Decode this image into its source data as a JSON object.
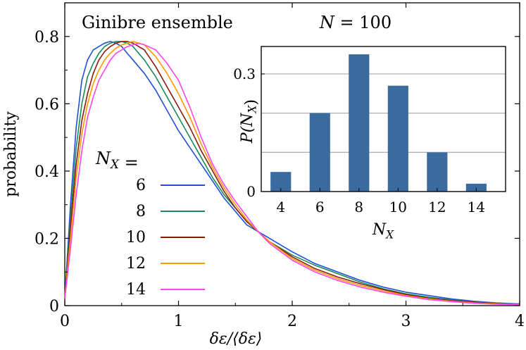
{
  "chart_data": [
    {
      "type": "line",
      "title": "Ginibre ensemble",
      "xlabel": "δε/⟨δε⟩",
      "ylabel": "probability",
      "xlim": [
        0,
        4
      ],
      "ylim": [
        0,
        0.9
      ],
      "xticks": [
        "0",
        "1",
        "2",
        "3",
        "4"
      ],
      "yticks": [
        "0",
        "0.2",
        "0.4",
        "0.6",
        "0.8"
      ],
      "legend_title": "N_X =",
      "legend_placement": "left-middle",
      "x": [
        0,
        0.05,
        0.1,
        0.15,
        0.2,
        0.25,
        0.3,
        0.35,
        0.4,
        0.45,
        0.5,
        0.55,
        0.6,
        0.65,
        0.7,
        0.8,
        0.9,
        1.0,
        1.1,
        1.2,
        1.3,
        1.4,
        1.5,
        1.6,
        1.7,
        1.8,
        2.0,
        2.2,
        2.4,
        2.6,
        2.8,
        3.0,
        3.2,
        3.4,
        3.6,
        3.8,
        4.0
      ],
      "series": [
        {
          "name": "6",
          "color": "#1f4fd6",
          "values": [
            0.02,
            0.3,
            0.53,
            0.67,
            0.73,
            0.76,
            0.77,
            0.78,
            0.785,
            0.78,
            0.77,
            0.75,
            0.73,
            0.71,
            0.69,
            0.64,
            0.58,
            0.52,
            0.47,
            0.42,
            0.37,
            0.32,
            0.28,
            0.24,
            0.22,
            0.2,
            0.16,
            0.125,
            0.1,
            0.075,
            0.055,
            0.04,
            0.03,
            0.02,
            0.013,
            0.008,
            0.005
          ]
        },
        {
          "name": "8",
          "color": "#1a8a5a",
          "values": [
            0.02,
            0.26,
            0.47,
            0.6,
            0.68,
            0.72,
            0.75,
            0.77,
            0.78,
            0.785,
            0.785,
            0.78,
            0.77,
            0.75,
            0.73,
            0.68,
            0.62,
            0.56,
            0.5,
            0.44,
            0.38,
            0.33,
            0.29,
            0.25,
            0.22,
            0.19,
            0.15,
            0.12,
            0.095,
            0.07,
            0.05,
            0.035,
            0.025,
            0.017,
            0.011,
            0.007,
            0.004
          ]
        },
        {
          "name": "10",
          "color": "#8b1a0a",
          "values": [
            0.02,
            0.23,
            0.42,
            0.55,
            0.63,
            0.69,
            0.73,
            0.755,
            0.77,
            0.78,
            0.785,
            0.785,
            0.78,
            0.77,
            0.76,
            0.71,
            0.65,
            0.59,
            0.53,
            0.46,
            0.4,
            0.34,
            0.29,
            0.25,
            0.22,
            0.19,
            0.145,
            0.11,
            0.085,
            0.065,
            0.048,
            0.033,
            0.022,
            0.015,
            0.01,
            0.006,
            0.003
          ]
        },
        {
          "name": "12",
          "color": "#ff9900",
          "values": [
            0.02,
            0.2,
            0.38,
            0.51,
            0.6,
            0.66,
            0.7,
            0.73,
            0.75,
            0.765,
            0.775,
            0.78,
            0.785,
            0.78,
            0.775,
            0.74,
            0.69,
            0.63,
            0.56,
            0.48,
            0.41,
            0.35,
            0.3,
            0.255,
            0.22,
            0.19,
            0.14,
            0.105,
            0.08,
            0.06,
            0.044,
            0.03,
            0.02,
            0.013,
            0.008,
            0.005,
            0.003
          ]
        },
        {
          "name": "14",
          "color": "#ff44ee",
          "values": [
            0.02,
            0.17,
            0.33,
            0.46,
            0.56,
            0.62,
            0.67,
            0.7,
            0.73,
            0.75,
            0.76,
            0.77,
            0.775,
            0.78,
            0.775,
            0.76,
            0.72,
            0.67,
            0.59,
            0.5,
            0.42,
            0.36,
            0.31,
            0.265,
            0.22,
            0.185,
            0.135,
            0.1,
            0.075,
            0.055,
            0.04,
            0.028,
            0.018,
            0.012,
            0.007,
            0.004,
            0.002
          ]
        }
      ]
    },
    {
      "type": "bar",
      "title": "N = 100",
      "xlabel": "N_X",
      "ylabel": "P(N_X)",
      "categories": [
        "4",
        "6",
        "8",
        "10",
        "12",
        "14"
      ],
      "values": [
        0.05,
        0.2,
        0.35,
        0.27,
        0.1,
        0.02
      ],
      "ylim": [
        0,
        0.37
      ],
      "yticks": [
        "0",
        "0.3"
      ],
      "grid": true,
      "color": "#3b6a9e"
    }
  ]
}
